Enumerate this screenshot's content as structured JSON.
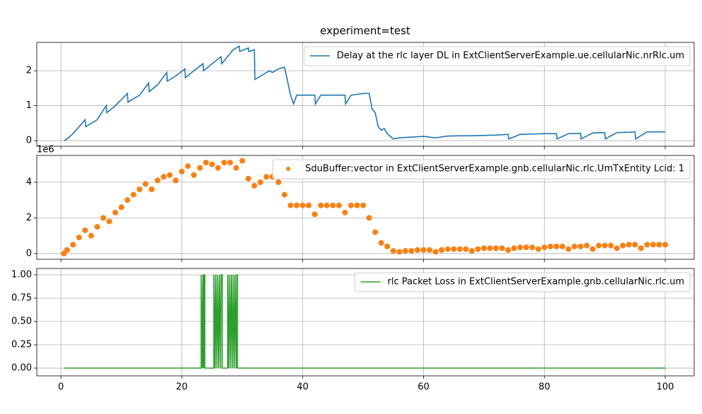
{
  "chart_data": [
    {
      "type": "line",
      "title": "experiment=test",
      "grid": true,
      "legend": "upper right",
      "xlim": [
        -4,
        104.8
      ],
      "xticks": [
        0,
        20,
        40,
        60,
        80,
        100
      ],
      "ylim": [
        -0.16,
        2.81
      ],
      "yticks": [
        0,
        1,
        2
      ],
      "x": [
        0.5,
        1,
        2,
        3,
        4,
        4.1,
        6,
        7.5,
        7.6,
        9,
        11,
        11.1,
        13,
        14.5,
        14.6,
        16,
        17.5,
        17.6,
        19,
        20.5,
        20.6,
        22,
        23.5,
        23.6,
        25,
        26.5,
        26.6,
        28.5,
        29.5,
        29.6,
        31,
        31.1,
        32,
        32.1,
        34.5,
        35,
        36,
        37,
        38,
        38.5,
        39,
        42,
        42.1,
        43,
        43.1,
        44,
        47,
        47.1,
        48,
        50,
        51,
        51.5,
        52,
        52.5,
        53,
        53.5,
        54,
        55,
        56,
        58,
        60,
        62,
        64,
        66,
        68,
        70,
        72,
        74,
        74.1,
        76,
        78,
        80,
        82,
        82.1,
        84,
        86,
        86.1,
        88,
        90,
        90.1,
        92,
        94,
        95,
        95.1,
        97,
        98,
        100
      ],
      "series": [
        {
          "name": "Delay at the rlc layer DL in ExtClientServerExample.ue.cellularNic.nrRlc.um",
          "color": "#1f77b4",
          "values": [
            0,
            0.05,
            0.2,
            0.4,
            0.6,
            0.4,
            0.6,
            1.0,
            0.8,
            1.0,
            1.35,
            1.1,
            1.3,
            1.65,
            1.4,
            1.6,
            1.95,
            1.7,
            1.85,
            2.05,
            1.8,
            2.0,
            2.2,
            2.0,
            2.2,
            2.4,
            2.2,
            2.6,
            2.7,
            2.55,
            2.65,
            2.55,
            2.6,
            1.75,
            2.0,
            1.95,
            2.05,
            2.1,
            1.3,
            1.05,
            1.3,
            1.3,
            1.05,
            1.3,
            1.3,
            1.3,
            1.3,
            1.05,
            1.3,
            1.35,
            1.35,
            0.9,
            0.8,
            0.4,
            0.3,
            0.35,
            0.2,
            0.05,
            0.08,
            0.1,
            0.12,
            0.08,
            0.13,
            0.14,
            0.14,
            0.15,
            0.16,
            0.18,
            0.05,
            0.18,
            0.19,
            0.2,
            0.2,
            0.05,
            0.2,
            0.21,
            0.05,
            0.22,
            0.23,
            0.05,
            0.23,
            0.24,
            0.25,
            0.05,
            0.25,
            0.25,
            0.25
          ]
        }
      ]
    },
    {
      "type": "scatter",
      "grid": true,
      "legend": "upper right",
      "offset_label": "1e6",
      "xlim": [
        -4,
        104.8
      ],
      "xticks": [
        0,
        20,
        40,
        60,
        80,
        100
      ],
      "ylim": [
        -0.32,
        5.5
      ],
      "yticks": [
        0,
        2,
        4
      ],
      "x": [
        0.5,
        1,
        2,
        3,
        4,
        5,
        6,
        7,
        8,
        9,
        10,
        11,
        12,
        13,
        14,
        15,
        16,
        17,
        18,
        19,
        20,
        21,
        22,
        23,
        24,
        25,
        26,
        27,
        28,
        29,
        30,
        31,
        32,
        33,
        34,
        35,
        36,
        37,
        38,
        39,
        40,
        41,
        42,
        43,
        44,
        45,
        46,
        47,
        48,
        49,
        50,
        51,
        52,
        53,
        54,
        55,
        56,
        57,
        58,
        59,
        60,
        61,
        62,
        63,
        64,
        65,
        66,
        67,
        68,
        69,
        70,
        71,
        72,
        73,
        74,
        75,
        76,
        77,
        78,
        79,
        80,
        81,
        82,
        83,
        84,
        85,
        86,
        87,
        88,
        89,
        90,
        91,
        92,
        93,
        94,
        95,
        96,
        97,
        98,
        99,
        100
      ],
      "series": [
        {
          "name": "SduBuffer:vector in ExtClientServerExample.gnb.cellularNic.rlc.UmTxEntity Lcid: 1",
          "color": "#ff7f0e",
          "values": [
            0,
            0.2,
            0.5,
            0.9,
            1.3,
            1.0,
            1.5,
            2.0,
            1.8,
            2.3,
            2.6,
            3.0,
            3.3,
            3.6,
            3.9,
            3.6,
            4.1,
            4.3,
            4.4,
            4.1,
            4.6,
            4.9,
            4.4,
            4.8,
            5.1,
            5.0,
            4.8,
            5.1,
            5.1,
            4.8,
            5.2,
            4.2,
            3.8,
            4.0,
            4.3,
            4.3,
            4.0,
            3.3,
            2.7,
            2.7,
            2.7,
            2.7,
            2.2,
            2.7,
            2.7,
            2.7,
            2.7,
            2.3,
            2.7,
            2.7,
            2.7,
            2.0,
            1.2,
            0.6,
            0.4,
            0.15,
            0.1,
            0.15,
            0.15,
            0.2,
            0.2,
            0.2,
            0.1,
            0.2,
            0.25,
            0.25,
            0.25,
            0.25,
            0.15,
            0.25,
            0.3,
            0.3,
            0.3,
            0.3,
            0.2,
            0.3,
            0.35,
            0.35,
            0.35,
            0.25,
            0.35,
            0.4,
            0.4,
            0.4,
            0.25,
            0.4,
            0.4,
            0.45,
            0.25,
            0.45,
            0.45,
            0.45,
            0.3,
            0.45,
            0.5,
            0.5,
            0.3,
            0.5,
            0.5,
            0.5,
            0.5
          ]
        }
      ]
    },
    {
      "type": "line",
      "grid": true,
      "legend": "upper right",
      "xlim": [
        -4,
        104.8
      ],
      "xticks": [
        0,
        20,
        40,
        60,
        80,
        100
      ],
      "ylim": [
        -0.083,
        1.068
      ],
      "yticks": [
        {
          "value": 0,
          "label": "0.00"
        },
        {
          "value": 0.25,
          "label": "0.25"
        },
        {
          "value": 0.5,
          "label": "0.50"
        },
        {
          "value": 0.75,
          "label": "0.75"
        },
        {
          "value": 1,
          "label": "1.00"
        }
      ],
      "x": [
        0.5,
        23.2,
        23.2,
        23.4,
        23.5,
        23.6,
        23.7,
        23.8,
        23.8,
        25.3,
        25.3,
        25.5,
        25.6,
        25.8,
        25.9,
        26.1,
        26.2,
        26.4,
        26.5,
        26.7,
        26.7,
        27.6,
        27.6,
        27.8,
        27.9,
        28.1,
        28.2,
        28.4,
        28.5,
        28.7,
        28.8,
        29.0,
        29.1,
        29.2,
        29.2,
        100
      ],
      "series": [
        {
          "name": "rlc Packet Loss in ExtClientServerExample.gnb.cellularNic.rlc.um",
          "color": "#2ca02c",
          "values": [
            0,
            0,
            1,
            0,
            1,
            0,
            1,
            1,
            0,
            0,
            1,
            0,
            1,
            0,
            1,
            0,
            1,
            0,
            1,
            1,
            0,
            0,
            1,
            0,
            1,
            0,
            1,
            0,
            1,
            0,
            1,
            0,
            1,
            1,
            0,
            0
          ]
        }
      ]
    }
  ]
}
